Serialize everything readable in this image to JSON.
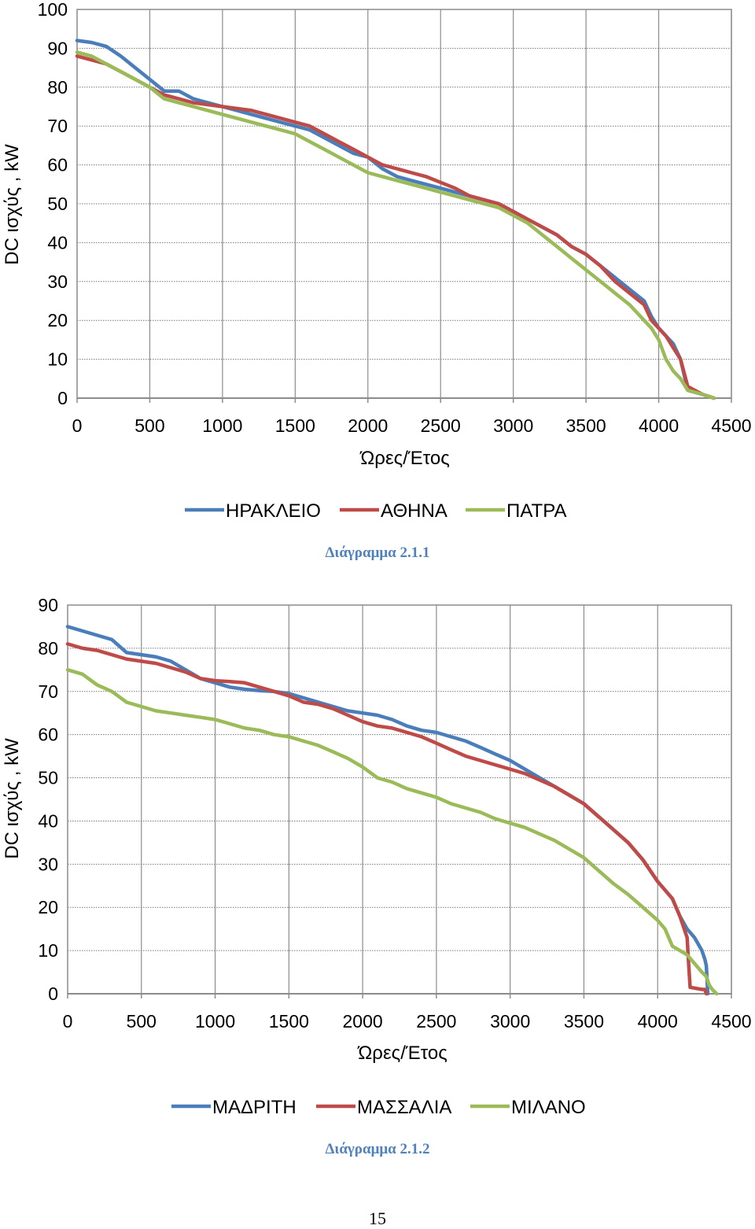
{
  "chart_data": [
    {
      "type": "line",
      "title": "",
      "xlabel": "Ώρες/Έτος",
      "ylabel": "DC ισχύς , kW",
      "xlim": [
        0,
        4500
      ],
      "ylim": [
        0,
        100
      ],
      "x_ticks": [
        "0",
        "500",
        "1000",
        "1500",
        "2000",
        "2500",
        "3000",
        "3500",
        "4000",
        "4500"
      ],
      "y_ticks": [
        "0",
        "10",
        "20",
        "30",
        "40",
        "50",
        "60",
        "70",
        "80",
        "90",
        "100"
      ],
      "grid": true,
      "legend": "bottom",
      "caption": "Διάγραμμα 2.1.1",
      "series": [
        {
          "name": "ΗΡΑΚΛΕΙΟ",
          "color": "#4a7ebb",
          "x": [
            0,
            100,
            200,
            300,
            400,
            500,
            600,
            700,
            800,
            900,
            1000,
            1200,
            1400,
            1500,
            1600,
            1700,
            1800,
            1900,
            2000,
            2100,
            2200,
            2300,
            2400,
            2500,
            2600,
            2700,
            2800,
            2900,
            3000,
            3100,
            3200,
            3300,
            3400,
            3500,
            3600,
            3700,
            3800,
            3900,
            3950,
            4000,
            4050,
            4100,
            4150,
            4200,
            4300,
            4380
          ],
          "y": [
            92,
            91.5,
            90.5,
            88,
            85,
            82,
            79,
            79,
            77,
            76,
            75,
            73,
            71,
            70,
            69,
            67,
            65,
            63,
            62,
            59,
            57,
            56,
            55,
            54,
            53,
            52,
            51,
            50,
            48,
            46,
            44,
            42,
            39,
            37,
            34,
            31,
            28,
            25,
            21,
            18,
            16,
            14,
            10,
            2,
            1,
            0
          ]
        },
        {
          "name": "ΑΘΗΝΑ",
          "color": "#be4b48",
          "x": [
            0,
            100,
            200,
            300,
            400,
            500,
            600,
            700,
            800,
            900,
            1000,
            1200,
            1400,
            1500,
            1600,
            1700,
            1800,
            1900,
            2000,
            2100,
            2200,
            2300,
            2400,
            2500,
            2600,
            2700,
            2800,
            2900,
            3000,
            3100,
            3200,
            3300,
            3400,
            3500,
            3600,
            3700,
            3800,
            3900,
            3950,
            4000,
            4050,
            4100,
            4150,
            4200,
            4300,
            4380
          ],
          "y": [
            88,
            87,
            86,
            84,
            82,
            80,
            78,
            77,
            76,
            75.5,
            75,
            74,
            72,
            71,
            70,
            68,
            66,
            64,
            62,
            60,
            59,
            58,
            57,
            55.5,
            54,
            52,
            51,
            50,
            48,
            46,
            44,
            42,
            39,
            37,
            34,
            30,
            27,
            24,
            20,
            18,
            16,
            13,
            10,
            3,
            1,
            0
          ]
        },
        {
          "name": "ΠΑΤΡΑ",
          "color": "#9bbb59",
          "x": [
            0,
            100,
            200,
            300,
            400,
            500,
            600,
            700,
            800,
            900,
            1000,
            1200,
            1400,
            1500,
            1600,
            1700,
            1800,
            1900,
            2000,
            2100,
            2200,
            2300,
            2400,
            2500,
            2600,
            2700,
            2800,
            2900,
            3000,
            3100,
            3200,
            3300,
            3400,
            3500,
            3600,
            3700,
            3800,
            3900,
            3950,
            4000,
            4050,
            4100,
            4150,
            4200,
            4300,
            4380
          ],
          "y": [
            89,
            88,
            86,
            84,
            82,
            80,
            77,
            76,
            75,
            74,
            73,
            71,
            69,
            68,
            66,
            64,
            62,
            60,
            58,
            57,
            56,
            55,
            54,
            53,
            52,
            51,
            50,
            49,
            47,
            45,
            42,
            39,
            36,
            33,
            30,
            27,
            24,
            20,
            18,
            15,
            10,
            7,
            5,
            2,
            1,
            0
          ]
        }
      ]
    },
    {
      "type": "line",
      "title": "",
      "xlabel": "Ώρες/Έτος",
      "ylabel": "DC ισχύς , kW",
      "xlim": [
        0,
        4500
      ],
      "ylim": [
        0,
        90
      ],
      "x_ticks": [
        "0",
        "500",
        "1000",
        "1500",
        "2000",
        "2500",
        "3000",
        "3500",
        "4000",
        "4500"
      ],
      "y_ticks": [
        "0",
        "10",
        "20",
        "30",
        "40",
        "50",
        "60",
        "70",
        "80",
        "90"
      ],
      "grid": true,
      "legend": "bottom",
      "caption": "Διάγραμμα 2.1.2",
      "series": [
        {
          "name": "ΜΑΔΡΙΤΗ",
          "color": "#4a7ebb",
          "x": [
            0,
            100,
            200,
            300,
            400,
            500,
            600,
            700,
            800,
            900,
            1000,
            1100,
            1200,
            1300,
            1400,
            1500,
            1600,
            1700,
            1800,
            1900,
            2000,
            2100,
            2200,
            2300,
            2400,
            2500,
            2600,
            2700,
            2800,
            2900,
            3000,
            3100,
            3200,
            3300,
            3400,
            3500,
            3600,
            3700,
            3800,
            3900,
            4000,
            4100,
            4150,
            4200,
            4250,
            4300,
            4320,
            4330,
            4340
          ],
          "y": [
            85,
            84,
            83,
            82,
            79,
            78.5,
            78,
            77,
            75,
            73,
            72,
            71,
            70.5,
            70.2,
            70,
            69.5,
            68.5,
            67.5,
            66.5,
            65.5,
            65,
            64.5,
            63.5,
            62,
            61,
            60.5,
            59.5,
            58.5,
            57,
            55.5,
            54,
            52,
            50,
            48,
            46,
            44,
            41,
            38,
            35,
            31,
            26,
            22,
            18,
            15,
            13,
            10,
            8,
            6.5,
            0
          ]
        },
        {
          "name": "ΜΑΣΣΑΛΙΑ",
          "color": "#be4b48",
          "x": [
            0,
            100,
            200,
            300,
            400,
            500,
            600,
            700,
            800,
            900,
            1000,
            1100,
            1200,
            1300,
            1400,
            1500,
            1600,
            1700,
            1800,
            1900,
            2000,
            2100,
            2200,
            2300,
            2400,
            2500,
            2600,
            2700,
            2800,
            2900,
            3000,
            3100,
            3200,
            3300,
            3400,
            3500,
            3600,
            3700,
            3800,
            3900,
            4000,
            4100,
            4150,
            4200,
            4210,
            4220,
            4300,
            4320,
            4330
          ],
          "y": [
            81,
            80,
            79.5,
            78.5,
            77.5,
            77,
            76.5,
            75.5,
            74.5,
            73,
            72.5,
            72.3,
            72,
            71,
            70,
            69,
            67.5,
            67,
            66,
            64.5,
            63,
            62,
            61.5,
            60.5,
            59.5,
            58,
            56.5,
            55,
            54,
            53,
            52,
            51,
            49.5,
            48,
            46,
            44,
            41,
            38,
            35,
            31,
            26,
            22,
            18,
            13,
            7,
            1.5,
            1,
            1,
            0
          ]
        },
        {
          "name": "ΜΙΛΑΝΟ",
          "color": "#9bbb59",
          "x": [
            0,
            100,
            200,
            300,
            400,
            500,
            600,
            700,
            800,
            900,
            1000,
            1100,
            1200,
            1300,
            1400,
            1500,
            1600,
            1700,
            1800,
            1900,
            2000,
            2100,
            2200,
            2300,
            2400,
            2500,
            2600,
            2700,
            2800,
            2900,
            3000,
            3100,
            3200,
            3300,
            3400,
            3500,
            3600,
            3700,
            3800,
            3900,
            4000,
            4050,
            4100,
            4150,
            4200,
            4250,
            4300,
            4330,
            4350,
            4370,
            4400
          ],
          "y": [
            75,
            74,
            71.5,
            70,
            67.5,
            66.5,
            65.5,
            65,
            64.5,
            64,
            63.5,
            62.5,
            61.5,
            61,
            60,
            59.5,
            58.5,
            57.5,
            56,
            54.5,
            52.5,
            50,
            49,
            47.5,
            46.5,
            45.5,
            44,
            43,
            42,
            40.5,
            39.5,
            38.5,
            37,
            35.5,
            33.5,
            31.5,
            28.5,
            25.5,
            23,
            20,
            17,
            15,
            11,
            10,
            9,
            7,
            5,
            4,
            2,
            1,
            0
          ]
        }
      ]
    }
  ],
  "page_number": "15"
}
